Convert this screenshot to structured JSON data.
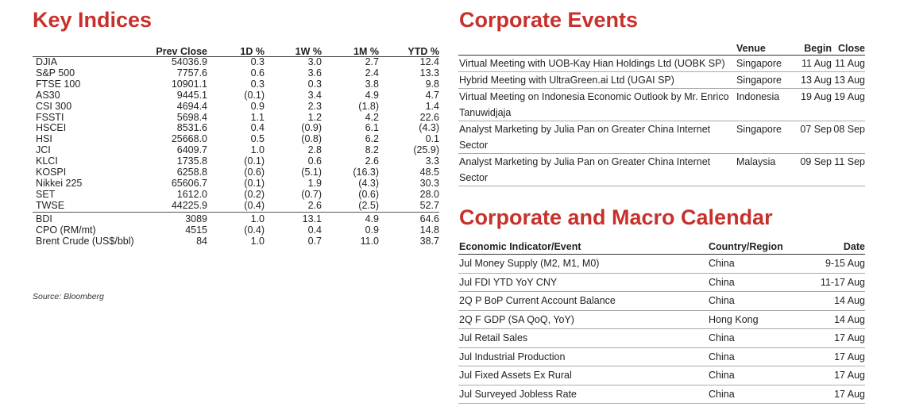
{
  "key_indices": {
    "title": "Key Indices",
    "headers": [
      "",
      "Prev Close",
      "1D %",
      "1W %",
      "1M %",
      "YTD %"
    ],
    "rows": [
      [
        "DJIA",
        "54036.9",
        "0.3",
        "3.0",
        "2.7",
        "12.4"
      ],
      [
        "S&P 500",
        "7757.6",
        "0.6",
        "3.6",
        "2.4",
        "13.3"
      ],
      [
        "FTSE 100",
        "10901.1",
        "0.3",
        "0.3",
        "3.8",
        "9.8"
      ],
      [
        "AS30",
        "9445.1",
        "(0.1)",
        "3.4",
        "4.9",
        "4.7"
      ],
      [
        "CSI 300",
        "4694.4",
        "0.9",
        "2.3",
        "(1.8)",
        "1.4"
      ],
      [
        "FSSTI",
        "5698.4",
        "1.1",
        "1.2",
        "4.2",
        "22.6"
      ],
      [
        "HSCEI",
        "8531.6",
        "0.4",
        "(0.9)",
        "6.1",
        "(4.3)"
      ],
      [
        "HSI",
        "25668.0",
        "0.5",
        "(0.8)",
        "6.2",
        "0.1"
      ],
      [
        "JCI",
        "6409.7",
        "1.0",
        "2.8",
        "8.2",
        "(25.9)"
      ],
      [
        "KLCI",
        "1735.8",
        "(0.1)",
        "0.6",
        "2.6",
        "3.3"
      ],
      [
        "KOSPI",
        "6258.8",
        "(0.6)",
        "(5.1)",
        "(16.3)",
        "48.5"
      ],
      [
        "Nikkei 225",
        "65606.7",
        "(0.1)",
        "1.9",
        "(4.3)",
        "30.3"
      ],
      [
        "SET",
        "1612.0",
        "(0.2)",
        "(0.7)",
        "(0.6)",
        "28.0"
      ],
      [
        "TWSE",
        "44225.9",
        "(0.4)",
        "2.6",
        "(2.5)",
        "52.7"
      ]
    ],
    "commodity_rows": [
      [
        "BDI",
        "3089",
        "1.0",
        "13.1",
        "4.9",
        "64.6"
      ],
      [
        "CPO (RM/mt)",
        "4515",
        "(0.4)",
        "0.4",
        "0.9",
        "14.8"
      ],
      [
        "Brent Crude (US$/bbl)",
        "84",
        "1.0",
        "0.7",
        "11.0",
        "38.7"
      ]
    ],
    "source": "Source: Bloomberg"
  },
  "corporate_events": {
    "title": "Corporate Events",
    "headers": [
      "",
      "Venue",
      "Begin",
      "Close"
    ],
    "rows": [
      [
        "Virtual Meeting with UOB-Kay Hian Holdings Ltd (UOBK SP)",
        "Singapore",
        "11 Aug",
        "11 Aug"
      ],
      [
        "Hybrid Meeting with UltraGreen.ai Ltd (UGAI SP)",
        "Singapore",
        "13 Aug",
        "13 Aug"
      ],
      [
        "Virtual Meeting on Indonesia Economic Outlook by Mr. Enrico Tanuwidjaja",
        "Indonesia",
        "19 Aug",
        "19 Aug"
      ],
      [
        "Analyst Marketing by Julia Pan on Greater China Internet Sector",
        "Singapore",
        "07 Sep",
        "08 Sep"
      ],
      [
        "Analyst Marketing by Julia Pan on Greater China Internet Sector",
        "Malaysia",
        "09 Sep",
        "11 Sep"
      ]
    ]
  },
  "calendar": {
    "title": "Corporate and Macro Calendar",
    "headers": [
      "Economic Indicator/Event",
      "Country/Region",
      "Date"
    ],
    "rows": [
      [
        "Jul Money Supply (M2, M1, M0)",
        "China",
        "9-15 Aug"
      ],
      [
        "Jul FDI YTD YoY CNY",
        "China",
        "11-17 Aug"
      ],
      [
        "2Q P BoP Current Account Balance",
        "China",
        "14 Aug"
      ],
      [
        "2Q F GDP (SA QoQ, YoY)",
        "Hong Kong",
        "14 Aug"
      ],
      [
        "Jul Retail Sales",
        "China",
        "17 Aug"
      ],
      [
        "Jul Industrial Production",
        "China",
        "17 Aug"
      ],
      [
        "Jul Fixed Assets Ex Rural",
        "China",
        "17 Aug"
      ],
      [
        "Jul Surveyed Jobless Rate",
        "China",
        "17 Aug"
      ]
    ]
  },
  "colors": {
    "heading_red": "#c8312b"
  }
}
